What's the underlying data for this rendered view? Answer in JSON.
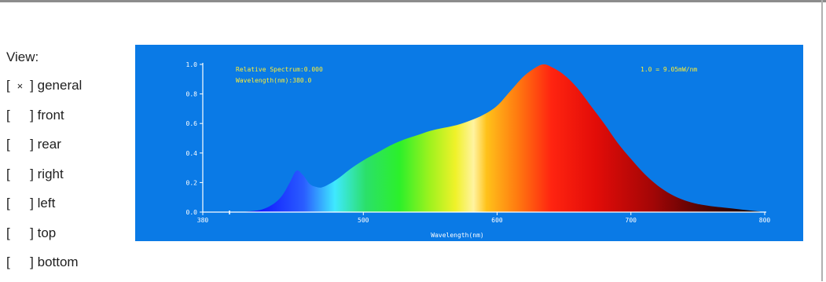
{
  "view": {
    "title": "View:",
    "options": [
      {
        "mark": "×",
        "label": "general",
        "selected": true
      },
      {
        "mark": "",
        "label": "front",
        "selected": false
      },
      {
        "mark": "",
        "label": "rear",
        "selected": false
      },
      {
        "mark": "",
        "label": "right",
        "selected": false
      },
      {
        "mark": "",
        "label": "left",
        "selected": false
      },
      {
        "mark": "",
        "label": "top",
        "selected": false
      },
      {
        "mark": "",
        "label": "bottom",
        "selected": false
      }
    ]
  },
  "spectrum": {
    "info_left_1": "Relative Spectrum:0.000",
    "info_left_2": "Wavelength(nm):380.0",
    "info_right": "1.0 = 9.05mW/nm"
  },
  "chart_data": {
    "type": "area",
    "title": "",
    "xlabel": "Wavelength(nm)",
    "ylabel": "",
    "xlim": [
      380,
      800
    ],
    "ylim": [
      0,
      1.0
    ],
    "x_ticks": [
      "380",
      "500",
      "600",
      "700",
      "800"
    ],
    "y_ticks": [
      "0.0",
      "0.2",
      "0.4",
      "0.6",
      "0.8",
      "1.0"
    ],
    "grid": false,
    "series": [
      {
        "x": [
          400,
          410,
          420,
          425,
          430,
          435,
          440,
          445,
          450,
          455,
          460,
          465,
          470,
          480,
          490,
          500,
          510,
          520,
          530,
          540,
          550,
          560,
          570,
          580,
          590,
          600,
          610,
          620,
          630,
          635,
          640,
          650,
          660,
          670,
          680,
          690,
          700,
          710,
          720,
          730,
          740,
          750,
          760,
          770,
          780,
          790,
          800
        ],
        "y": [
          0.0,
          0.002,
          0.01,
          0.02,
          0.04,
          0.07,
          0.12,
          0.2,
          0.28,
          0.25,
          0.19,
          0.17,
          0.17,
          0.22,
          0.29,
          0.35,
          0.4,
          0.45,
          0.49,
          0.52,
          0.55,
          0.57,
          0.59,
          0.62,
          0.66,
          0.72,
          0.82,
          0.92,
          0.985,
          1.0,
          0.985,
          0.93,
          0.84,
          0.72,
          0.6,
          0.47,
          0.36,
          0.26,
          0.18,
          0.12,
          0.08,
          0.055,
          0.04,
          0.03,
          0.02,
          0.01,
          0.0
        ]
      }
    ]
  }
}
